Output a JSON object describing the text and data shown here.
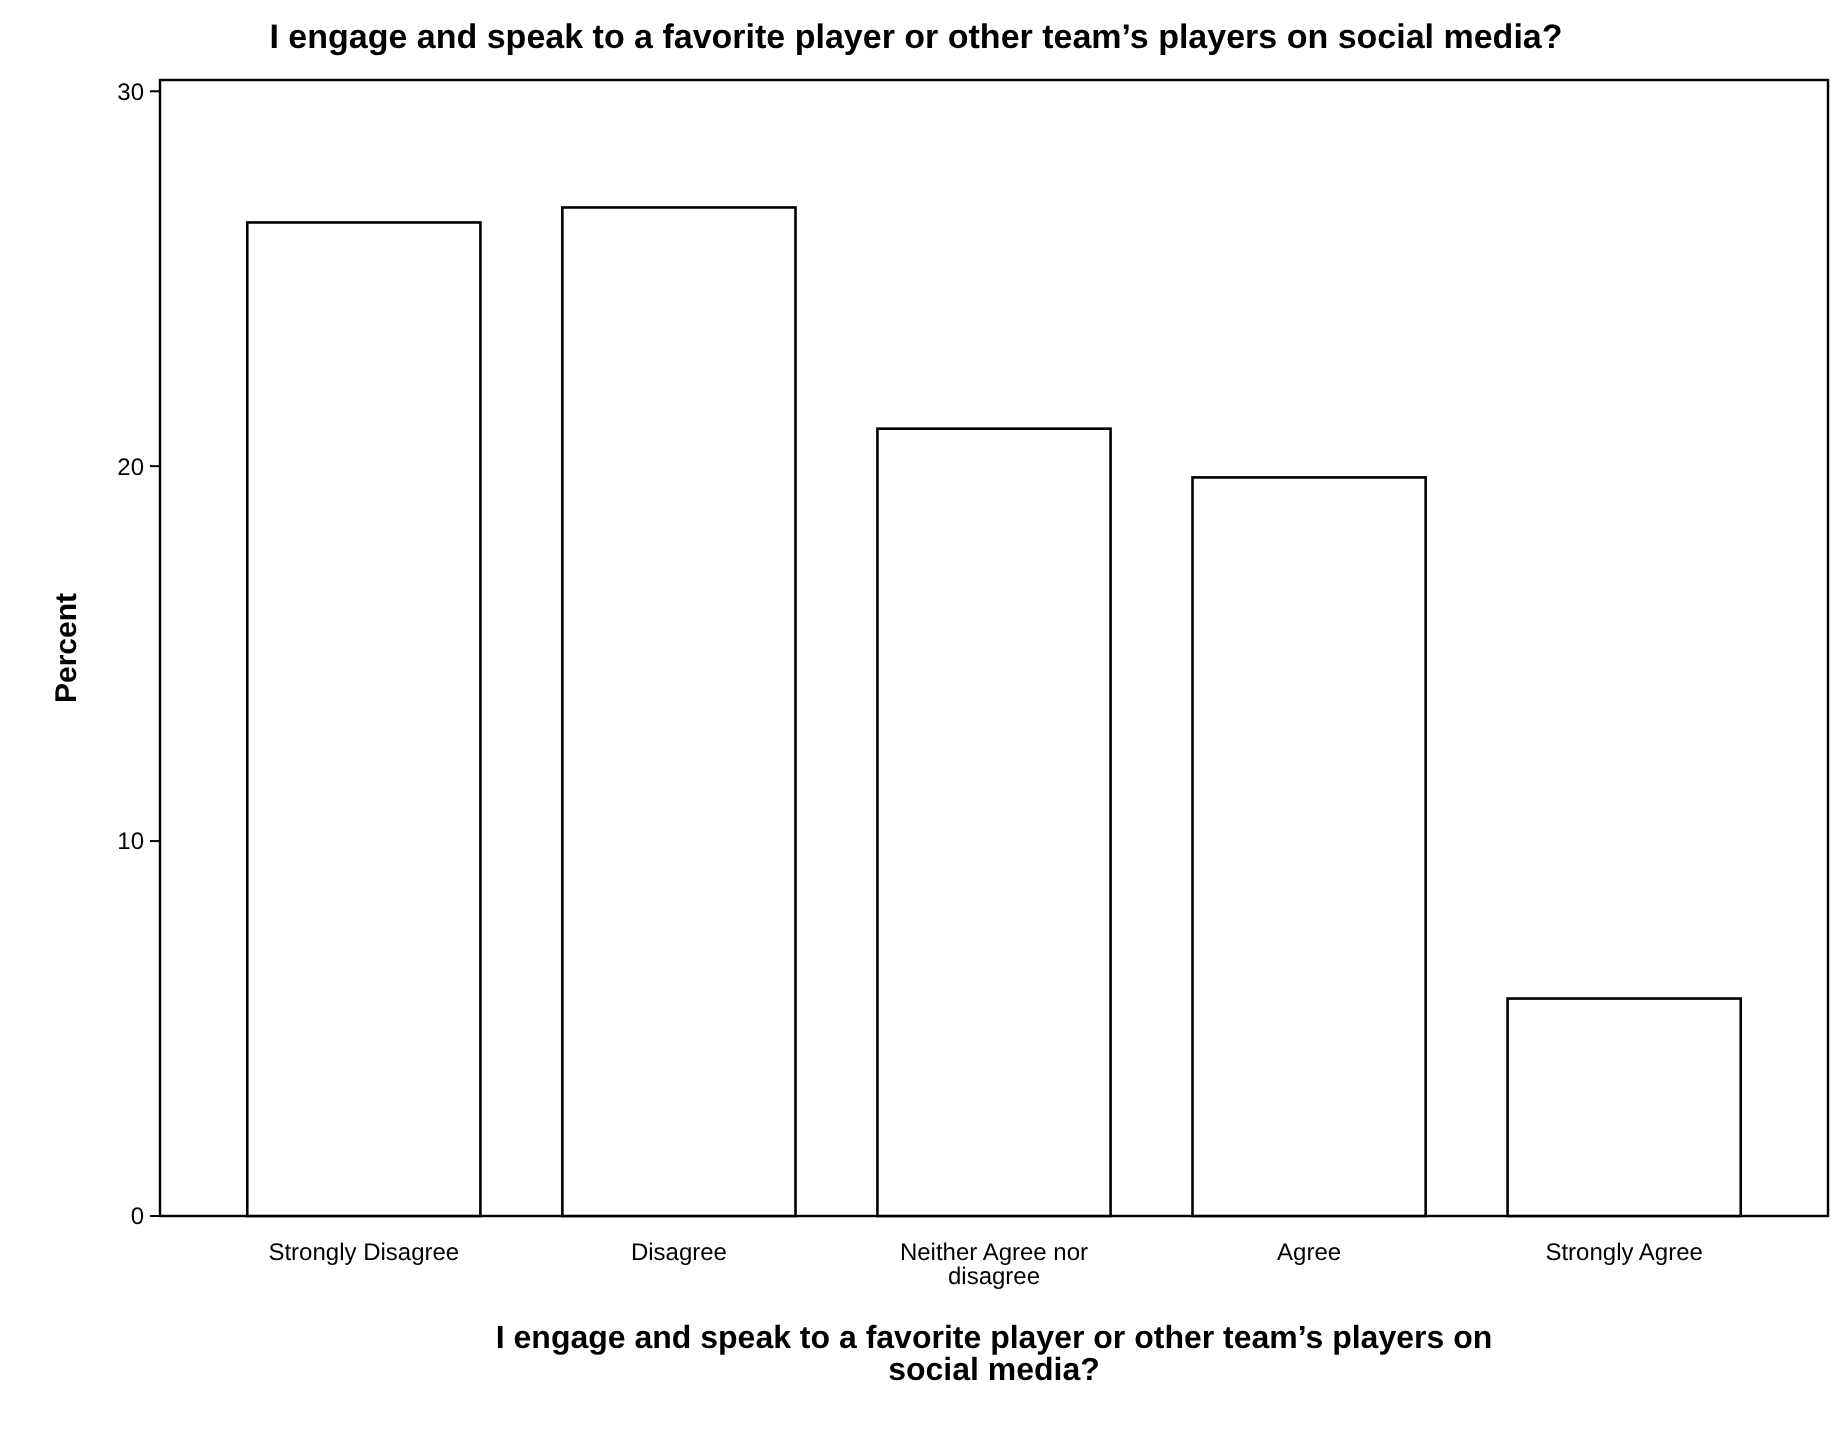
{
  "chart_data": {
    "type": "bar",
    "title": "I engage and speak to a favorite player or other team’s players on social media?",
    "xlabel": "I engage and speak to a favorite player or other team’s players on social media?",
    "ylabel": "Percent",
    "categories": [
      "Strongly Disagree",
      "Disagree",
      "Neither Agree nor disagree",
      "Agree",
      "Strongly Agree"
    ],
    "values": [
      26.5,
      26.9,
      21.0,
      19.7,
      5.8
    ],
    "color": "#ffffff",
    "ylim": [
      0,
      30.3
    ],
    "yticks": [
      0,
      10,
      20,
      30
    ],
    "grid": false
  }
}
